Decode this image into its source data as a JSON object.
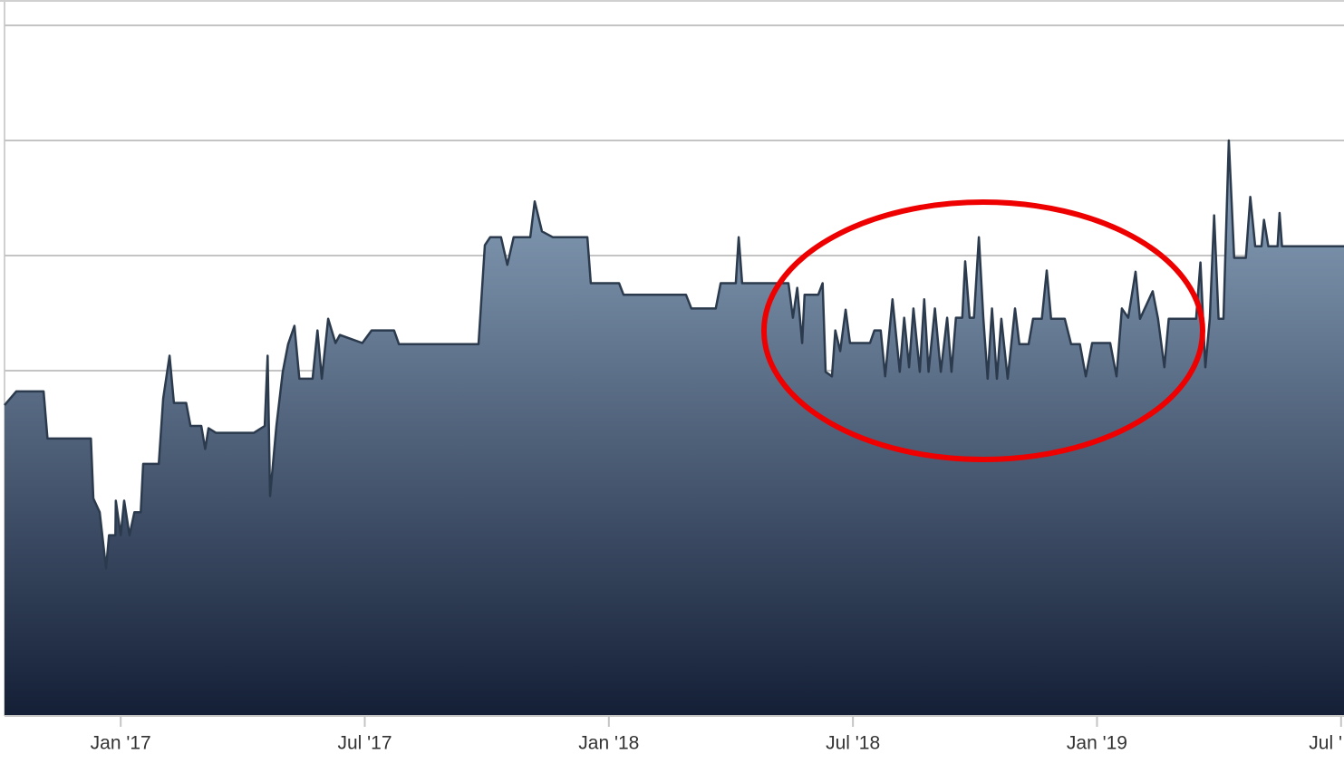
{
  "chart_data": {
    "type": "area",
    "x": [
      2016.762,
      2016.786,
      2016.842,
      2016.85,
      2016.939,
      2016.944,
      2016.957,
      2016.97,
      2016.976,
      2016.989,
      2016.99,
      2017.0,
      2017.007,
      2017.018,
      2017.028,
      2017.041,
      2017.046,
      2017.078,
      2017.087,
      2017.1,
      2017.109,
      2017.134,
      2017.143,
      2017.165,
      2017.173,
      2017.18,
      2017.195,
      2017.273,
      2017.295,
      2017.301,
      2017.306,
      2017.319,
      2017.332,
      2017.343,
      2017.356,
      2017.366,
      2017.393,
      2017.403,
      2017.412,
      2017.425,
      2017.44,
      2017.449,
      2017.495,
      2017.514,
      2017.56,
      2017.57,
      2017.733,
      2017.746,
      2017.757,
      2017.779,
      2017.792,
      2017.805,
      2017.839,
      2017.848,
      2017.863,
      2017.885,
      2017.956,
      2017.963,
      2018.021,
      2018.03,
      2018.158,
      2018.169,
      2018.219,
      2018.229,
      2018.26,
      2018.266,
      2018.273,
      2018.368,
      2018.377,
      2018.386,
      2018.396,
      2018.401,
      2018.429,
      2018.438,
      2018.444,
      2018.457,
      2018.464,
      2018.474,
      2018.485,
      2018.494,
      2018.535,
      2018.544,
      2018.557,
      2018.566,
      2018.581,
      2018.596,
      2018.605,
      2018.615,
      2018.624,
      2018.637,
      2018.646,
      2018.655,
      2018.668,
      2018.68,
      2018.693,
      2018.702,
      2018.711,
      2018.724,
      2018.73,
      2018.739,
      2018.748,
      2018.758,
      2018.767,
      2018.776,
      2018.785,
      2018.795,
      2018.804,
      2018.817,
      2018.832,
      2018.841,
      2018.86,
      2018.869,
      2018.887,
      2018.897,
      2018.906,
      2018.934,
      2018.947,
      2018.965,
      2018.977,
      2018.99,
      2019.027,
      2019.04,
      2019.051,
      2019.064,
      2019.079,
      2019.088,
      2019.114,
      2019.125,
      2019.138,
      2019.147,
      2019.203,
      2019.212,
      2019.222,
      2019.231,
      2019.24,
      2019.249,
      2019.259,
      2019.27,
      2019.281,
      2019.305,
      2019.314,
      2019.324,
      2019.337,
      2019.342,
      2019.351,
      2019.37,
      2019.374,
      2019.379,
      2019.506
    ],
    "values": [
      2.7,
      2.82,
      2.82,
      2.41,
      2.41,
      1.89,
      1.77,
      1.28,
      1.57,
      1.57,
      1.87,
      1.57,
      1.87,
      1.57,
      1.77,
      1.77,
      2.19,
      2.19,
      2.76,
      3.13,
      2.72,
      2.72,
      2.52,
      2.52,
      2.32,
      2.5,
      2.46,
      2.46,
      2.52,
      3.13,
      1.91,
      2.52,
      2.99,
      3.23,
      3.39,
      2.93,
      2.93,
      3.35,
      2.93,
      3.45,
      3.24,
      3.31,
      3.24,
      3.35,
      3.35,
      3.23,
      3.23,
      4.09,
      4.16,
      4.16,
      3.92,
      4.16,
      4.16,
      4.47,
      4.21,
      4.16,
      4.16,
      3.76,
      3.76,
      3.66,
      3.66,
      3.54,
      3.54,
      3.76,
      3.76,
      4.16,
      3.76,
      3.76,
      3.46,
      3.72,
      3.24,
      3.66,
      3.66,
      3.76,
      2.99,
      2.95,
      3.35,
      3.17,
      3.53,
      3.24,
      3.24,
      3.35,
      3.35,
      2.95,
      3.62,
      2.99,
      3.46,
      3.03,
      3.54,
      2.99,
      3.62,
      2.99,
      3.54,
      2.99,
      3.46,
      2.99,
      3.46,
      3.46,
      3.95,
      3.46,
      3.46,
      4.16,
      3.46,
      2.93,
      3.54,
      2.93,
      3.45,
      2.93,
      3.54,
      3.23,
      3.23,
      3.45,
      3.45,
      3.87,
      3.45,
      3.45,
      3.23,
      3.23,
      2.95,
      3.24,
      3.24,
      2.95,
      3.54,
      3.46,
      3.86,
      3.45,
      3.69,
      3.45,
      3.03,
      3.45,
      3.45,
      3.94,
      3.03,
      3.45,
      4.35,
      3.45,
      3.45,
      5.0,
      3.98,
      3.98,
      4.51,
      4.08,
      4.08,
      4.31,
      4.08,
      4.08,
      4.37,
      4.08,
      4.08
    ],
    "line_color": "#2b3a4d",
    "fill_top": "#8ea7c1",
    "fill_bottom": "#141f36",
    "xlim": [
      2016.762,
      2019.506
    ],
    "xticks": [
      {
        "value": 2017.0,
        "label": "Jan '17"
      },
      {
        "value": 2017.5,
        "label": "Jul '17"
      },
      {
        "value": 2018.0,
        "label": "Jan '18"
      },
      {
        "value": 2018.5,
        "label": "Jul '18"
      },
      {
        "value": 2019.0,
        "label": "Jan '19"
      },
      {
        "value": 2019.5,
        "label": "Jul '"
      }
    ],
    "ylim": [
      0,
      6
    ],
    "yticks": [
      3,
      4,
      5,
      6
    ],
    "grid": true
  }
}
